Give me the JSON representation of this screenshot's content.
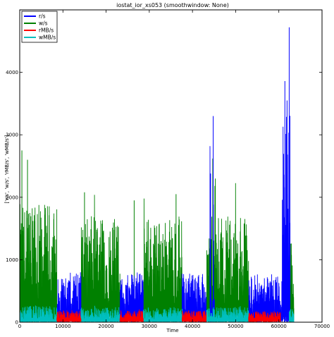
{
  "chart_data": {
    "type": "line",
    "title": "iostat_ior_xs053 (smoothwindow: None)",
    "xlabel": "Time",
    "ylabel": "['r/s', 'w/s', 'rMB/s', 'wMB/s']",
    "xlim": [
      0,
      70000
    ],
    "ylim": [
      0,
      5000
    ],
    "xticks": [
      0,
      10000,
      20000,
      30000,
      40000,
      50000,
      60000,
      70000
    ],
    "yticks": [
      0,
      1000,
      2000,
      3000,
      4000
    ],
    "grid": false,
    "legend_position": "top-left",
    "series": [
      {
        "name": "r/s",
        "color": "#0000ff",
        "segments": [
          {
            "x_start": 8600,
            "x_end": 14200,
            "base": 150,
            "amp": 650,
            "peak": 780
          },
          {
            "x_start": 23200,
            "x_end": 28600,
            "base": 150,
            "amp": 650,
            "peak": 800
          },
          {
            "x_start": 37600,
            "x_end": 43200,
            "base": 150,
            "amp": 650,
            "peak": 800
          },
          {
            "x_start": 44000,
            "x_end": 45100,
            "base": 100,
            "amp": 500,
            "peak": 3300
          },
          {
            "x_start": 53000,
            "x_end": 60800,
            "base": 150,
            "amp": 620,
            "peak": 780
          },
          {
            "x_start": 60800,
            "x_end": 62600,
            "base": 300,
            "amp": 3000,
            "peak": 4720
          }
        ],
        "spikes": [
          {
            "x": 61400,
            "y": 3860
          },
          {
            "x": 61900,
            "y": 3550
          },
          {
            "x": 62400,
            "y": 4720
          },
          {
            "x": 44800,
            "y": 3300
          },
          {
            "x": 44200,
            "y": 2380
          }
        ]
      },
      {
        "name": "w/s",
        "color": "#008000",
        "segments": [
          {
            "x_start": 0,
            "x_end": 8600,
            "base": 300,
            "amp": 1600,
            "peak": 2750
          },
          {
            "x_start": 14200,
            "x_end": 23200,
            "base": 300,
            "amp": 1400,
            "peak": 2100
          },
          {
            "x_start": 28600,
            "x_end": 37600,
            "base": 300,
            "amp": 1400,
            "peak": 2050
          },
          {
            "x_start": 43200,
            "x_end": 53000,
            "base": 300,
            "amp": 1400,
            "peak": 2620
          },
          {
            "x_start": 62400,
            "x_end": 63500,
            "base": 200,
            "amp": 1200,
            "peak": 1600
          }
        ],
        "spikes": [
          {
            "x": 500,
            "y": 2750
          },
          {
            "x": 1800,
            "y": 2600
          },
          {
            "x": 15000,
            "y": 2080
          },
          {
            "x": 26500,
            "y": 1950
          },
          {
            "x": 36200,
            "y": 2050
          },
          {
            "x": 44700,
            "y": 2620
          },
          {
            "x": 45300,
            "y": 2300
          }
        ]
      },
      {
        "name": "rMB/s",
        "color": "#ff0000",
        "segments": [
          {
            "x_start": 8600,
            "x_end": 14200,
            "base": 60,
            "amp": 130,
            "peak": 220
          },
          {
            "x_start": 23200,
            "x_end": 28600,
            "base": 60,
            "amp": 130,
            "peak": 220
          },
          {
            "x_start": 37600,
            "x_end": 43200,
            "base": 60,
            "amp": 130,
            "peak": 220
          },
          {
            "x_start": 53000,
            "x_end": 60400,
            "base": 60,
            "amp": 120,
            "peak": 200
          }
        ],
        "spikes": []
      },
      {
        "name": "wMB/s",
        "color": "#00bfbf",
        "segments": [
          {
            "x_start": 0,
            "x_end": 8600,
            "base": 40,
            "amp": 220,
            "peak": 300
          },
          {
            "x_start": 14200,
            "x_end": 23200,
            "base": 40,
            "amp": 200,
            "peak": 280
          },
          {
            "x_start": 28600,
            "x_end": 37600,
            "base": 40,
            "amp": 200,
            "peak": 280
          },
          {
            "x_start": 43200,
            "x_end": 53000,
            "base": 40,
            "amp": 200,
            "peak": 280
          },
          {
            "x_start": 62400,
            "x_end": 63500,
            "base": 40,
            "amp": 180,
            "peak": 250
          }
        ],
        "spikes": []
      }
    ]
  }
}
